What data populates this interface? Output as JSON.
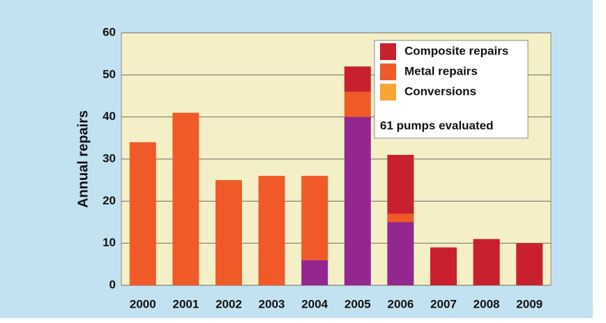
{
  "chart_data": {
    "type": "stacked_bar",
    "y_label": "Annual repairs",
    "annotation": "61 pumps evaluated",
    "categories": [
      "2000",
      "2001",
      "2002",
      "2003",
      "2004",
      "2005",
      "2006",
      "2007",
      "2008",
      "2009"
    ],
    "series": [
      {
        "color": "#93278f",
        "values": [
          0,
          0,
          0,
          0,
          6,
          40,
          15,
          0,
          0,
          0
        ]
      },
      {
        "name": "Conversions",
        "color": "#f9a533",
        "values": [
          0,
          0,
          0,
          0,
          0,
          0,
          0,
          0,
          0,
          0
        ]
      },
      {
        "name": "Metal repairs",
        "color": "#f05a28",
        "values": [
          34,
          41,
          25,
          26,
          20,
          6,
          2,
          0,
          0,
          0
        ]
      },
      {
        "name": "Composite repairs",
        "color": "#c8202f",
        "values": [
          0,
          0,
          0,
          0,
          0,
          6,
          14,
          9,
          11,
          10
        ]
      }
    ],
    "ylim": [
      0,
      60
    ],
    "yticks": [
      0,
      10,
      20,
      30,
      40,
      50,
      60
    ],
    "grid": true
  }
}
